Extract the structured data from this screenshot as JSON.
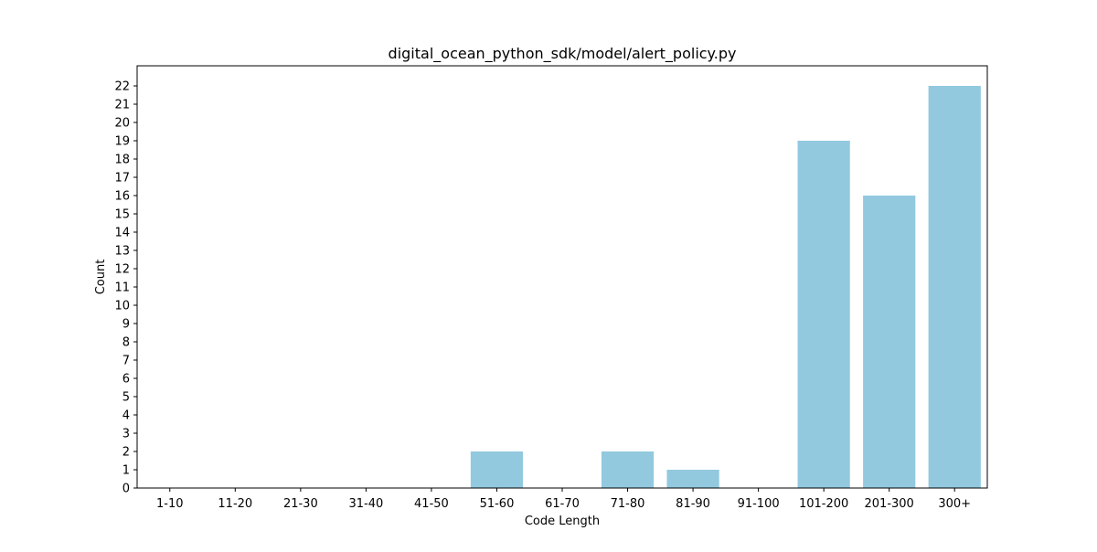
{
  "chart_data": {
    "type": "bar",
    "title": "digital_ocean_python_sdk/model/alert_policy.py",
    "xlabel": "Code Length",
    "ylabel": "Count",
    "categories": [
      "1-10",
      "11-20",
      "21-30",
      "31-40",
      "41-50",
      "51-60",
      "61-70",
      "71-80",
      "81-90",
      "91-100",
      "101-200",
      "201-300",
      "300+"
    ],
    "values": [
      0,
      0,
      0,
      0,
      0,
      2,
      0,
      2,
      1,
      0,
      19,
      16,
      22
    ],
    "ylim": [
      0,
      23.1
    ],
    "yticks": [
      0,
      1,
      2,
      3,
      4,
      5,
      6,
      7,
      8,
      9,
      10,
      11,
      12,
      13,
      14,
      15,
      16,
      17,
      18,
      19,
      20,
      21,
      22
    ],
    "bar_color": "#92c9df",
    "grid": false,
    "legend": "none"
  }
}
